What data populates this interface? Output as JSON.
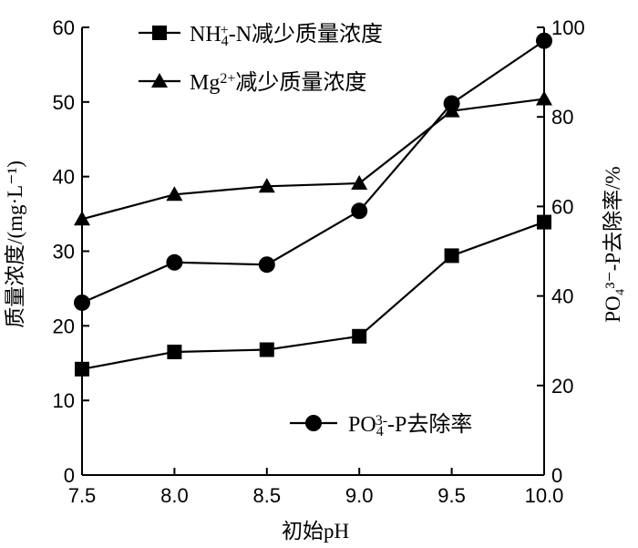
{
  "chart_data": {
    "type": "line",
    "x": [
      7.5,
      8.0,
      8.5,
      9.0,
      9.5,
      10.0
    ],
    "xticks": [
      "7.5",
      "8.0",
      "8.5",
      "9.0",
      "9.5",
      "10.0"
    ],
    "xlabel": "初始pH",
    "xlim": [
      7.5,
      10.0
    ],
    "ylabel_left": "质量浓度/(mg·L⁻¹)",
    "ylim_left": [
      0,
      60
    ],
    "yticks_left": [
      "0",
      "10",
      "20",
      "30",
      "40",
      "50",
      "60"
    ],
    "ylabel_right": "PO₄³⁻-P去除率/%",
    "ylim_right": [
      0,
      100
    ],
    "yticks_right": [
      "0",
      "20",
      "40",
      "60",
      "80",
      "100"
    ],
    "grid": false,
    "series": [
      {
        "name": "NH₄⁺-N减少质量浓度",
        "axis": "left",
        "marker": "square",
        "values": [
          14.2,
          16.5,
          16.8,
          18.6,
          29.4,
          33.9
        ]
      },
      {
        "name": "Mg²⁺减少质量浓度",
        "axis": "left",
        "marker": "triangle",
        "values": [
          34.3,
          37.6,
          38.7,
          39.1,
          48.8,
          50.4
        ]
      },
      {
        "name": "PO₄³⁻-P去除率",
        "axis": "right",
        "marker": "circle",
        "values": [
          38.5,
          47.5,
          47.0,
          59.0,
          83.0,
          97.0
        ]
      }
    ],
    "legend": {
      "top": [
        {
          "series": 0,
          "pre": "NH",
          "sub": "4",
          "sup": "+",
          "post": "-N减少质量浓度"
        },
        {
          "series": 1,
          "pre": "Mg",
          "sub": "",
          "sup": "2+",
          "post": "减少质量浓度"
        }
      ],
      "bottom": [
        {
          "series": 2,
          "pre": "PO",
          "sub": "4",
          "sup": "3-",
          "post": "-P去除率"
        }
      ]
    }
  }
}
